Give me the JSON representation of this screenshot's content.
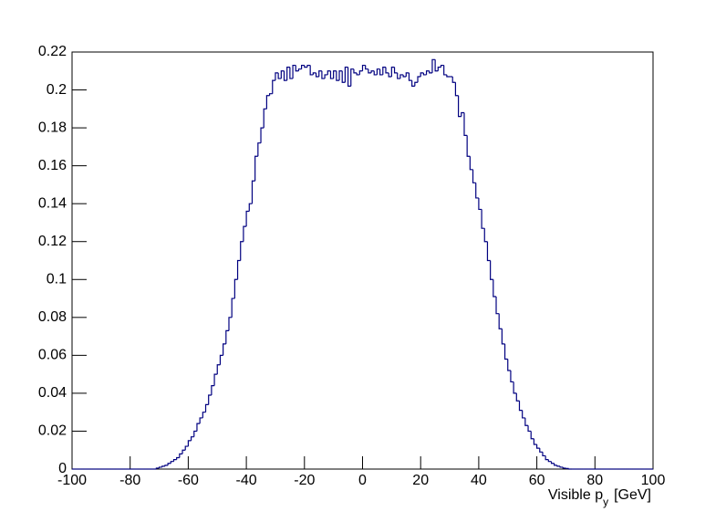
{
  "chart_data": {
    "type": "histogram",
    "x_label": {
      "text": "Visible p",
      "subscript": "y",
      "unit": "[GeV]"
    },
    "color": "#000080",
    "xlim": [
      -100,
      100
    ],
    "ylim": [
      0,
      0.22
    ],
    "xticks": [
      -100,
      -80,
      -60,
      -40,
      -20,
      0,
      20,
      40,
      60,
      80,
      100
    ],
    "yticks": [
      0,
      0.02,
      0.04,
      0.06,
      0.08,
      0.1,
      0.12,
      0.14,
      0.16,
      0.18,
      0.2,
      0.22
    ],
    "bins": [
      -100,
      -99,
      -98,
      -97,
      -96,
      -95,
      -94,
      -93,
      -92,
      -91,
      -90,
      -89,
      -88,
      -87,
      -86,
      -85,
      -84,
      -83,
      -82,
      -81,
      -80,
      -79,
      -78,
      -77,
      -76,
      -75,
      -74,
      -73,
      -72,
      -71,
      -70,
      -69,
      -68,
      -67,
      -66,
      -65,
      -64,
      -63,
      -62,
      -61,
      -60,
      -59,
      -58,
      -57,
      -56,
      -55,
      -54,
      -53,
      -52,
      -51,
      -50,
      -49,
      -48,
      -47,
      -46,
      -45,
      -44,
      -43,
      -42,
      -41,
      -40,
      -39,
      -38,
      -37,
      -36,
      -35,
      -34,
      -33,
      -32,
      -31,
      -30,
      -29,
      -28,
      -27,
      -26,
      -25,
      -24,
      -23,
      -22,
      -21,
      -20,
      -19,
      -18,
      -17,
      -16,
      -15,
      -14,
      -13,
      -12,
      -11,
      -10,
      -9,
      -8,
      -7,
      -6,
      -5,
      -4,
      -3,
      -2,
      -1,
      0,
      1,
      2,
      3,
      4,
      5,
      6,
      7,
      8,
      9,
      10,
      11,
      12,
      13,
      14,
      15,
      16,
      17,
      18,
      19,
      20,
      21,
      22,
      23,
      24,
      25,
      26,
      27,
      28,
      29,
      30,
      31,
      32,
      33,
      34,
      35,
      36,
      37,
      38,
      39,
      40,
      41,
      42,
      43,
      44,
      45,
      46,
      47,
      48,
      49,
      50,
      51,
      52,
      53,
      54,
      55,
      56,
      57,
      58,
      59,
      60,
      61,
      62,
      63,
      64,
      65,
      66,
      67,
      68,
      69,
      70,
      71,
      72,
      73,
      74,
      75,
      76,
      77,
      78,
      79,
      80,
      81,
      82,
      83,
      84,
      85,
      86,
      87,
      88,
      89,
      90,
      91,
      92,
      93,
      94,
      95,
      96,
      97,
      98,
      99,
      100
    ],
    "values": [
      0,
      0,
      0,
      0,
      0,
      0,
      0,
      0,
      0,
      0,
      0,
      0,
      0,
      0,
      0,
      0,
      0,
      0,
      0,
      0,
      0,
      0,
      0,
      0,
      0,
      0,
      0,
      0,
      0,
      0.0005,
      0.001,
      0.0015,
      0.002,
      0.003,
      0.004,
      0.005,
      0.006,
      0.008,
      0.01,
      0.012,
      0.015,
      0.017,
      0.02,
      0.024,
      0.027,
      0.03,
      0.034,
      0.039,
      0.044,
      0.05,
      0.055,
      0.06,
      0.066,
      0.073,
      0.08,
      0.09,
      0.1,
      0.11,
      0.12,
      0.128,
      0.136,
      0.14,
      0.152,
      0.165,
      0.172,
      0.18,
      0.19,
      0.197,
      0.198,
      0.205,
      0.209,
      0.206,
      0.21,
      0.205,
      0.212,
      0.206,
      0.213,
      0.21,
      0.211,
      0.213,
      0.212,
      0.213,
      0.208,
      0.209,
      0.207,
      0.21,
      0.206,
      0.208,
      0.21,
      0.206,
      0.21,
      0.205,
      0.21,
      0.204,
      0.212,
      0.202,
      0.211,
      0.209,
      0.208,
      0.21,
      0.213,
      0.211,
      0.209,
      0.21,
      0.208,
      0.211,
      0.208,
      0.212,
      0.209,
      0.207,
      0.212,
      0.209,
      0.206,
      0.208,
      0.207,
      0.209,
      0.205,
      0.202,
      0.204,
      0.207,
      0.209,
      0.208,
      0.21,
      0.209,
      0.216,
      0.21,
      0.212,
      0.213,
      0.208,
      0.207,
      0.207,
      0.204,
      0.197,
      0.186,
      0.188,
      0.176,
      0.165,
      0.158,
      0.151,
      0.143,
      0.137,
      0.127,
      0.12,
      0.11,
      0.1,
      0.091,
      0.082,
      0.074,
      0.066,
      0.058,
      0.052,
      0.046,
      0.04,
      0.036,
      0.031,
      0.027,
      0.023,
      0.02,
      0.016,
      0.013,
      0.011,
      0.009,
      0.007,
      0.005,
      0.004,
      0.003,
      0.002,
      0.0015,
      0.001,
      0.0005,
      0.0003,
      0,
      0,
      0,
      0,
      0,
      0,
      0,
      0,
      0,
      0,
      0,
      0,
      0,
      0,
      0,
      0,
      0,
      0,
      0,
      0,
      0,
      0,
      0,
      0,
      0,
      0,
      0,
      0,
      0
    ]
  }
}
